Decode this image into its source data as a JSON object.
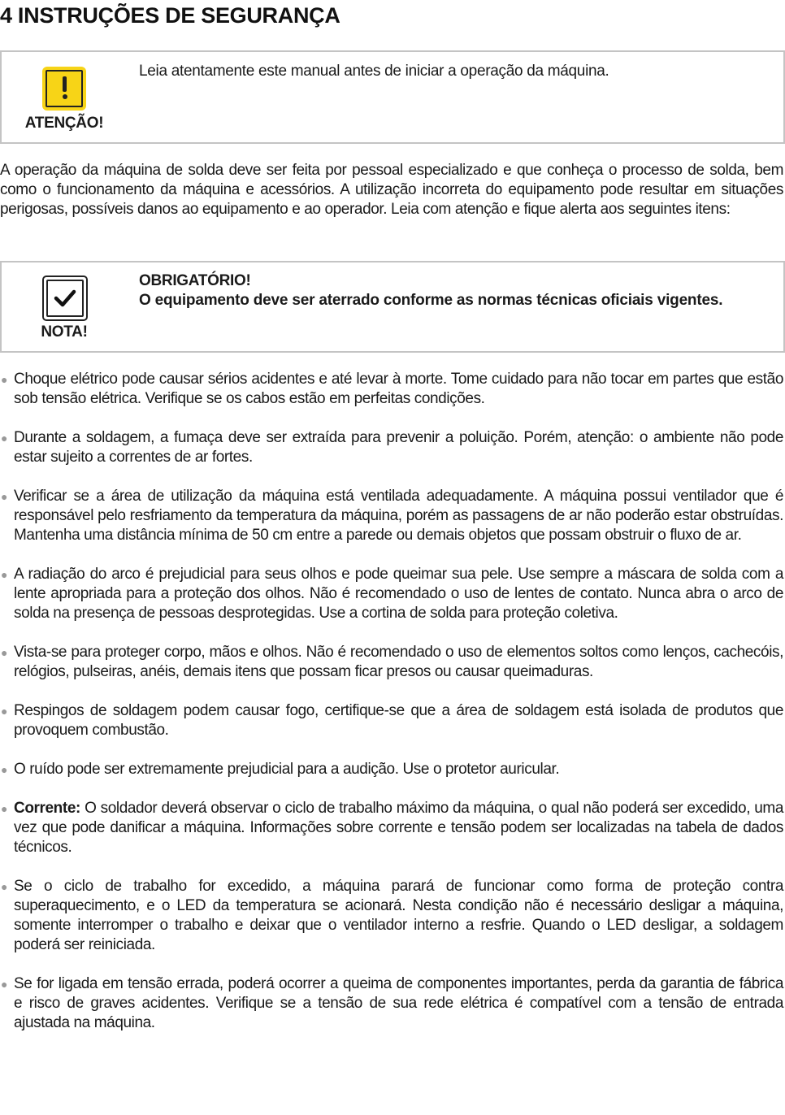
{
  "title": "4 INSTRUÇÕES DE SEGURANÇA",
  "attention_box": {
    "icon": "warning-exclamation-icon",
    "label": "ATENÇÃO!",
    "text": "Leia atentamente este manual antes de iniciar a operação da máquina.",
    "icon_color": "#f7d417"
  },
  "intro": "A operação da máquina de solda deve ser feita por pessoal especializado e que conheça o processo de solda, bem como o funcionamento da máquina e acessórios. A utilização incorreta do equipamento pode resultar em situações perigosas, possíveis danos ao equipamento e ao operador. Leia com atenção e fique alerta aos seguintes itens:",
  "note_box": {
    "icon": "checkmark-icon",
    "label": "NOTA!",
    "heading": "OBRIGATÓRIO!",
    "text": "O equipamento deve ser aterrado conforme as normas técnicas oficiais vigentes."
  },
  "items": [
    {
      "bold": "",
      "text": "Choque elétrico pode causar sérios acidentes e até levar à morte. Tome cuidado para não tocar em partes que estão sob tensão elétrica. Verifique se os cabos estão em perfeitas condições."
    },
    {
      "bold": "",
      "text": "Durante a soldagem, a fumaça deve ser extraída para prevenir a poluição. Porém, atenção: o ambiente não pode estar sujeito a correntes de ar fortes."
    },
    {
      "bold": "",
      "text": "Verificar se a área de utilização da máquina está ventilada adequadamente. A máquina possui ventilador que é responsável pelo resfriamento da temperatura da máquina, porém as passagens de ar não poderão estar obstruídas. Mantenha uma distância mínima de 50 cm entre a parede ou demais objetos que possam obstruir o fluxo de ar."
    },
    {
      "bold": "",
      "text": "A radiação do arco é prejudicial para seus olhos e pode queimar sua pele. Use sempre a máscara de solda com a lente apropriada para a proteção dos olhos. Não é recomendado o uso de lentes de contato. Nunca abra o arco de solda na presença de pessoas desprotegidas. Use a cortina de solda para proteção coletiva."
    },
    {
      "bold": "",
      "text": "Vista-se para proteger corpo, mãos e olhos. Não é recomendado o uso de elementos soltos como lenços, cachecóis, relógios, pulseiras, anéis, demais itens que possam ficar presos ou causar queimaduras."
    },
    {
      "bold": "",
      "text": "Respingos de soldagem podem causar fogo, certifique-se que a área de soldagem está isolada de produtos que provoquem combustão."
    },
    {
      "bold": "",
      "text": "O ruído pode ser extremamente prejudicial para a audição. Use o protetor auricular."
    },
    {
      "bold": "Corrente:",
      "text": " O soldador deverá observar o ciclo de trabalho máximo da máquina, o qual não poderá ser excedido, uma vez que pode danificar a máquina. Informações sobre corrente e tensão podem ser localizadas na tabela de dados técnicos."
    },
    {
      "bold": "",
      "text": "Se o ciclo de trabalho for excedido, a máquina parará de funcionar como forma de proteção contra superaquecimento, e o LED da temperatura se acionará. Nesta condição não é necessário desligar a máquina, somente interromper o trabalho e deixar que o ventilador interno a resfrie. Quando o LED desligar, a soldagem poderá ser reiniciada."
    },
    {
      "bold": "",
      "text": "Se for ligada em tensão errada, poderá ocorrer a queima de componentes importantes, perda da garantia de fábrica e risco de graves acidentes. Verifique se a tensão de sua rede elétrica é compatível com a tensão de entrada ajustada na máquina."
    }
  ]
}
